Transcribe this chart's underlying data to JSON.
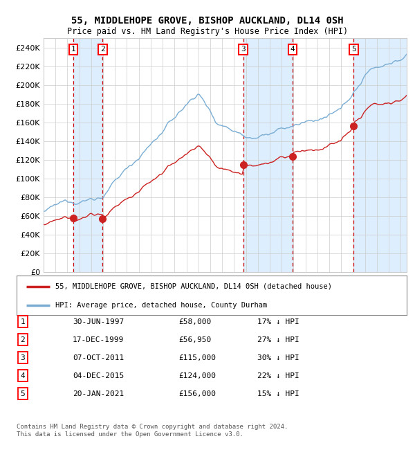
{
  "title": "55, MIDDLEHOPE GROVE, BISHOP AUCKLAND, DL14 0SH",
  "subtitle": "Price paid vs. HM Land Registry's House Price Index (HPI)",
  "legend_property": "55, MIDDLEHOPE GROVE, BISHOP AUCKLAND, DL14 0SH (detached house)",
  "legend_hpi": "HPI: Average price, detached house, County Durham",
  "footer": "Contains HM Land Registry data © Crown copyright and database right 2024.\nThis data is licensed under the Open Government Licence v3.0.",
  "sale_dates_num": [
    1997.497,
    1999.962,
    2011.764,
    2015.922,
    2021.055
  ],
  "sale_prices": [
    58000,
    56950,
    115000,
    124000,
    156000
  ],
  "sale_labels": [
    "1",
    "2",
    "3",
    "4",
    "5"
  ],
  "sale_info": [
    [
      "1",
      "30-JUN-1997",
      "£58,000",
      "17% ↓ HPI"
    ],
    [
      "2",
      "17-DEC-1999",
      "£56,950",
      "27% ↓ HPI"
    ],
    [
      "3",
      "07-OCT-2011",
      "£115,000",
      "30% ↓ HPI"
    ],
    [
      "4",
      "04-DEC-2015",
      "£124,000",
      "22% ↓ HPI"
    ],
    [
      "5",
      "20-JAN-2021",
      "£156,000",
      "15% ↓ HPI"
    ]
  ],
  "hpi_color": "#7aadd4",
  "property_color": "#cc2222",
  "shade_color": "#ddeeff",
  "vline_color": "#cc0000",
  "grid_color": "#cccccc",
  "bg_color": "#ffffff",
  "ylim": [
    0,
    250000
  ],
  "ytick_step": 20000,
  "xmin": 1995.0,
  "xmax": 2025.5
}
